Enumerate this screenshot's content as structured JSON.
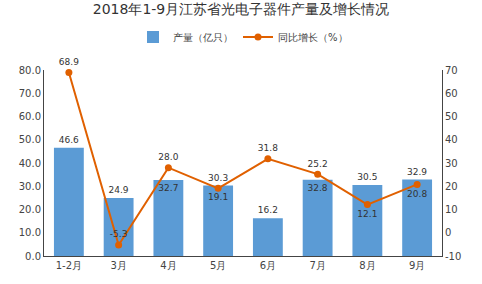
{
  "chart_data": {
    "type": "bar",
    "title": "2018年1-9月江苏省光电子器件产量及增长情况",
    "categories": [
      "1-2月",
      "3月",
      "4月",
      "5月",
      "6月",
      "7月",
      "8月",
      "9月"
    ],
    "series": [
      {
        "name": "产量（亿只）",
        "type": "bar",
        "color": "#5b9bd5",
        "values": [
          46.6,
          24.9,
          32.7,
          30.3,
          16.2,
          32.8,
          30.5,
          32.9
        ]
      },
      {
        "name": "同比增长（%）",
        "type": "line",
        "color": "#e06000",
        "marker": "circle",
        "axis": "y2",
        "values": [
          68.9,
          -5.3,
          28.0,
          19.1,
          31.8,
          25.2,
          12.1,
          20.8
        ],
        "value_labels": [
          "68.9",
          "-5.3",
          "28.0",
          "19.1",
          "31.8",
          "25.2",
          "12.1",
          "20.8"
        ]
      }
    ],
    "ylim": [
      0,
      80
    ],
    "yticks": [
      {
        "value": 0,
        "label": "0.0"
      },
      {
        "value": 10,
        "label": "10.0"
      },
      {
        "value": 20,
        "label": "20.0"
      },
      {
        "value": 30,
        "label": "30.0"
      },
      {
        "value": 40,
        "label": "40.0"
      },
      {
        "value": 50,
        "label": "50.0"
      },
      {
        "value": 60,
        "label": "60.0"
      },
      {
        "value": 70,
        "label": "70.0"
      },
      {
        "value": 80,
        "label": "80.0"
      }
    ],
    "y2lim": [
      -10,
      70
    ],
    "y2ticks": [
      -10,
      0,
      10,
      20,
      30,
      40,
      50,
      60,
      70
    ],
    "grid": false,
    "legend": "top",
    "data_labels": true
  }
}
